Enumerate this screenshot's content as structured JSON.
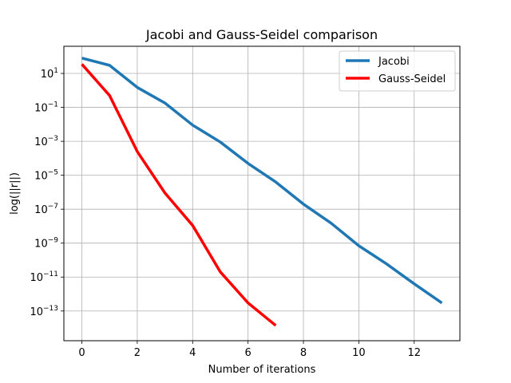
{
  "chart_data": {
    "type": "line",
    "title": "Jacobi and Gauss-Seidel comparison",
    "xlabel": "Number of iterations",
    "ylabel": "log(||r||)",
    "xlim": [
      -0.65,
      13.65
    ],
    "ylim_log10": [
      -14.75,
      2.6
    ],
    "y_scale": "log",
    "grid": true,
    "legend_position": "top-right",
    "x_ticks": [
      {
        "value": 0,
        "label": "0"
      },
      {
        "value": 2,
        "label": "2"
      },
      {
        "value": 4,
        "label": "4"
      },
      {
        "value": 6,
        "label": "6"
      },
      {
        "value": 8,
        "label": "8"
      },
      {
        "value": 10,
        "label": "10"
      },
      {
        "value": 12,
        "label": "12"
      }
    ],
    "y_ticks": [
      {
        "exp": 1,
        "base": "10",
        "sup": "1"
      },
      {
        "exp": -1,
        "base": "10",
        "sup": "−1"
      },
      {
        "exp": -3,
        "base": "10",
        "sup": "−3"
      },
      {
        "exp": -5,
        "base": "10",
        "sup": "−5"
      },
      {
        "exp": -7,
        "base": "10",
        "sup": "−7"
      },
      {
        "exp": -9,
        "base": "10",
        "sup": "−9"
      },
      {
        "exp": -11,
        "base": "10",
        "sup": "−11"
      },
      {
        "exp": -13,
        "base": "10",
        "sup": "−13"
      }
    ],
    "series": [
      {
        "name": "Jacobi",
        "color": "#1f77b4",
        "x": [
          0,
          1,
          2,
          3,
          4,
          5,
          6,
          7,
          8,
          9,
          10,
          11,
          12,
          13
        ],
        "y": [
          80,
          30,
          1.5,
          0.18,
          0.009,
          0.0009,
          5e-05,
          4e-06,
          2e-07,
          1.5e-08,
          7e-10,
          6e-11,
          4e-12,
          3e-13
        ]
      },
      {
        "name": "Gauss-Seidel",
        "color": "#ff0000",
        "x": [
          0,
          1,
          2,
          3,
          4,
          5,
          6,
          7
        ],
        "y": [
          35,
          0.5,
          0.00025,
          9e-07,
          1.1e-08,
          2e-11,
          3e-13,
          1.4e-14
        ]
      }
    ]
  }
}
